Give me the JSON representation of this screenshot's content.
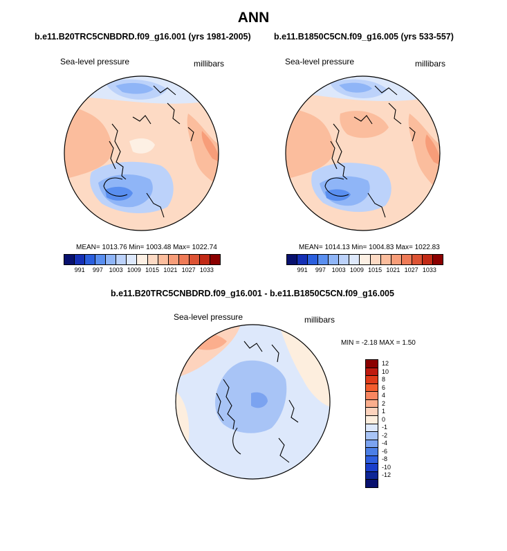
{
  "page": {
    "title": "ANN"
  },
  "panel_left": {
    "title": "b.e11.B20TRC5CNBDRD.f09_g16.001 (yrs 1981-2005)",
    "variable": "Sea-level pressure",
    "units": "millibars",
    "stats": "MEAN= 1013.76  Min= 1003.48  Max= 1022.74"
  },
  "panel_right": {
    "title": "b.e11.B1850C5CN.f09_g16.005 (yrs 533-557)",
    "variable": "Sea-level pressure",
    "units": "millibars",
    "stats": "MEAN= 1014.13  Min= 1004.83  Max= 1022.83"
  },
  "panel_diff": {
    "title": "b.e11.B20TRC5CNBDRD.f09_g16.001 - b.e11.B1850C5CN.f09_g16.005",
    "variable": "Sea-level pressure",
    "units": "millibars",
    "stats": "MIN =  -2.18 MAX =   1.50"
  },
  "abs_colorbar": {
    "labels": [
      "991",
      "997",
      "1003",
      "1009",
      "1015",
      "1021",
      "1027",
      "1033"
    ],
    "colors": [
      "#08116e",
      "#1530b5",
      "#2b5fde",
      "#5a8ff0",
      "#8fb5f7",
      "#bcd2fa",
      "#dde8fb",
      "#fdf0e4",
      "#fddac4",
      "#fbbd9d",
      "#f79d79",
      "#ef7b57",
      "#dd5334",
      "#c22a16",
      "#8b0000"
    ]
  },
  "diff_colorbar": {
    "labels": [
      "12",
      "10",
      "8",
      "6",
      "4",
      "2",
      "1",
      "0",
      "-1",
      "-2",
      "-4",
      "-6",
      "-8",
      "-10",
      "-12"
    ],
    "colors": [
      "#8b0000",
      "#bf1a0f",
      "#e03b1a",
      "#f45d2e",
      "#f88660",
      "#fbae8d",
      "#fdd3bd",
      "#fdeede",
      "#dde8fb",
      "#a8c4f6",
      "#7ba3f0",
      "#4c7fe6",
      "#2f5fe0",
      "#1a3ecb",
      "#0d2596",
      "#08116e"
    ]
  }
}
